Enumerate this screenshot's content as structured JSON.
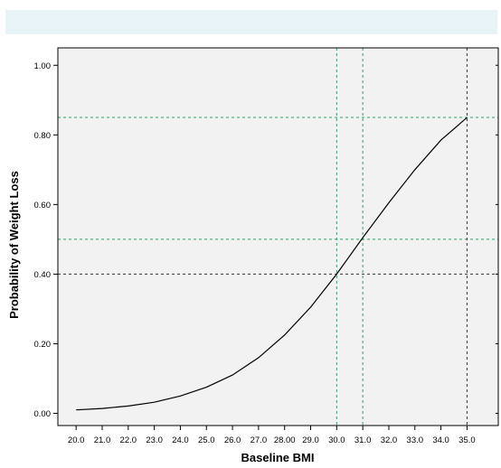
{
  "chart_data": {
    "type": "line",
    "title": "",
    "xlabel": "Baseline BMI",
    "ylabel": "Probability of Weight Loss",
    "xlim": [
      19.3,
      36.2
    ],
    "ylim": [
      -0.035,
      1.05
    ],
    "x_ticks": [
      {
        "value": 20,
        "label": "20.0"
      },
      {
        "value": 21,
        "label": "21.0"
      },
      {
        "value": 22,
        "label": "22.0"
      },
      {
        "value": 23,
        "label": "23.0"
      },
      {
        "value": 24,
        "label": "24.0"
      },
      {
        "value": 25,
        "label": "25.0"
      },
      {
        "value": 26,
        "label": "26.0"
      },
      {
        "value": 27,
        "label": "27.0"
      },
      {
        "value": 28,
        "label": "28.00"
      },
      {
        "value": 29,
        "label": "29.0"
      },
      {
        "value": 30,
        "label": "30.0"
      },
      {
        "value": 31,
        "label": "31.0"
      },
      {
        "value": 32,
        "label": "32.0"
      },
      {
        "value": 33,
        "label": "33.0"
      },
      {
        "value": 34,
        "label": "34.0"
      },
      {
        "value": 35,
        "label": "35.0"
      }
    ],
    "y_ticks": [
      {
        "value": 0.0,
        "label": "0.00"
      },
      {
        "value": 0.2,
        "label": "0.20"
      },
      {
        "value": 0.4,
        "label": "0.40"
      },
      {
        "value": 0.6,
        "label": "0.60"
      },
      {
        "value": 0.8,
        "label": "0.80"
      },
      {
        "value": 1.0,
        "label": "1.00"
      }
    ],
    "series": [
      {
        "x": [
          20,
          21,
          22,
          23,
          24,
          25,
          26,
          27,
          28,
          29,
          30,
          31,
          32,
          33,
          34,
          35
        ],
        "y": [
          0.01,
          0.014,
          0.021,
          0.032,
          0.05,
          0.075,
          0.11,
          0.16,
          0.225,
          0.305,
          0.4,
          0.505,
          0.605,
          0.7,
          0.785,
          0.85
        ],
        "color": "#000000"
      }
    ],
    "reference_lines": [
      {
        "orientation": "horizontal",
        "value": 0.4,
        "color": "#333333"
      },
      {
        "orientation": "horizontal",
        "value": 0.5,
        "color": "#3a9a6a"
      },
      {
        "orientation": "horizontal",
        "value": 0.85,
        "color": "#3a9a6a"
      },
      {
        "orientation": "vertical",
        "value": 30,
        "color": "#3a9a6a"
      },
      {
        "orientation": "vertical",
        "value": 31,
        "color": "#3a9a6a"
      },
      {
        "orientation": "vertical",
        "value": 35,
        "color": "#333333"
      }
    ],
    "grid": false,
    "colors": {
      "header_bar": "#e8f3f8",
      "plot_background": "#f2f2f2",
      "frame": "#000000"
    }
  }
}
